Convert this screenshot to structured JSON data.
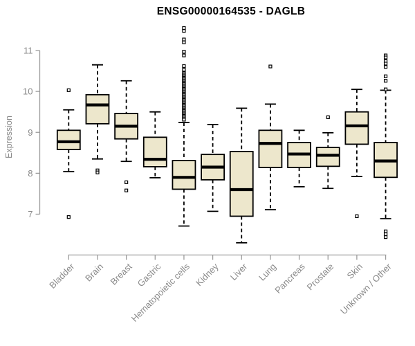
{
  "chart": {
    "title": "ENSG00000164535 - DAGLB",
    "ylabel": "Expression"
  },
  "chart_data": {
    "type": "boxplot",
    "title": "ENSG00000164535 - DAGLB",
    "xlabel": "",
    "ylabel": "Expression",
    "yticks": [
      7,
      8,
      9,
      10,
      11
    ],
    "axis_value_range": [
      7,
      11
    ],
    "ylim": [
      6.2,
      11.6
    ],
    "grid": false,
    "legend": false,
    "categories": [
      "Bladder",
      "Brain",
      "Breast",
      "Gastric",
      "Hematopoietic cells",
      "Kidney",
      "Liver",
      "Lung",
      "Pancreas",
      "Prostate",
      "Skin",
      "Unknown / Other"
    ],
    "series": [
      {
        "name": "Bladder",
        "whisker_low": 8.04,
        "q1": 8.58,
        "median": 8.77,
        "q3": 9.05,
        "whisker_high": 9.55,
        "outliers": [
          10.03,
          6.93
        ]
      },
      {
        "name": "Brain",
        "whisker_low": 8.35,
        "q1": 9.21,
        "median": 9.67,
        "q3": 9.92,
        "whisker_high": 10.65,
        "outliers": [
          8.07,
          8.02
        ]
      },
      {
        "name": "Breast",
        "whisker_low": 8.29,
        "q1": 8.84,
        "median": 9.15,
        "q3": 9.46,
        "whisker_high": 10.26,
        "outliers": [
          7.78,
          7.58
        ]
      },
      {
        "name": "Gastric",
        "whisker_low": 7.89,
        "q1": 8.16,
        "median": 8.34,
        "q3": 8.88,
        "whisker_high": 9.5,
        "outliers": []
      },
      {
        "name": "Hematopoietic cells",
        "whisker_low": 6.71,
        "q1": 7.61,
        "median": 7.9,
        "q3": 8.31,
        "whisker_high": 9.24,
        "outliers": [
          11.55,
          11.48,
          11.27,
          11.2,
          10.97,
          10.88,
          10.62,
          10.53,
          10.45,
          10.42,
          10.39,
          10.36,
          10.33,
          10.3,
          10.27,
          10.24,
          10.21,
          10.18,
          10.15,
          10.12,
          10.09,
          10.06,
          10.03,
          10.0,
          9.97,
          9.94,
          9.91,
          9.88,
          9.85,
          9.82,
          9.79,
          9.76,
          9.73,
          9.7,
          9.67,
          9.64,
          9.61,
          9.58,
          9.55,
          9.52,
          9.49,
          9.46,
          9.43,
          9.4,
          9.37,
          9.34,
          9.31
        ]
      },
      {
        "name": "Kidney",
        "whisker_low": 7.07,
        "q1": 7.84,
        "median": 8.15,
        "q3": 8.46,
        "whisker_high": 9.19,
        "outliers": []
      },
      {
        "name": "Liver",
        "whisker_low": 6.3,
        "q1": 6.95,
        "median": 7.6,
        "q3": 8.53,
        "whisker_high": 9.59,
        "outliers": []
      },
      {
        "name": "Lung",
        "whisker_low": 7.11,
        "q1": 8.14,
        "median": 8.73,
        "q3": 9.05,
        "whisker_high": 9.69,
        "outliers": [
          10.61
        ]
      },
      {
        "name": "Pancreas",
        "whisker_low": 7.67,
        "q1": 8.14,
        "median": 8.47,
        "q3": 8.75,
        "whisker_high": 9.05,
        "outliers": []
      },
      {
        "name": "Prostate",
        "whisker_low": 7.63,
        "q1": 8.17,
        "median": 8.44,
        "q3": 8.63,
        "whisker_high": 8.99,
        "outliers": [
          9.37
        ]
      },
      {
        "name": "Skin",
        "whisker_low": 7.92,
        "q1": 8.71,
        "median": 9.16,
        "q3": 9.5,
        "whisker_high": 10.05,
        "outliers": [
          6.95
        ]
      },
      {
        "name": "Unknown / Other",
        "whisker_low": 6.89,
        "q1": 7.9,
        "median": 8.3,
        "q3": 8.75,
        "whisker_high": 10.03,
        "outliers": [
          10.88,
          10.83,
          10.74,
          10.68,
          10.6,
          10.37,
          10.26,
          10.05,
          6.58,
          6.51,
          6.44
        ]
      }
    ],
    "colors": {
      "background": "#FFFFFF",
      "box_fill": "#EDE7CC",
      "box_stroke": "#000000",
      "median": "#000000",
      "whisker": "#000000",
      "outlier_stroke": "#000000",
      "axis_line": "#9b9b9b",
      "axis_text": "#8a8a8a",
      "title": "#000000"
    }
  }
}
